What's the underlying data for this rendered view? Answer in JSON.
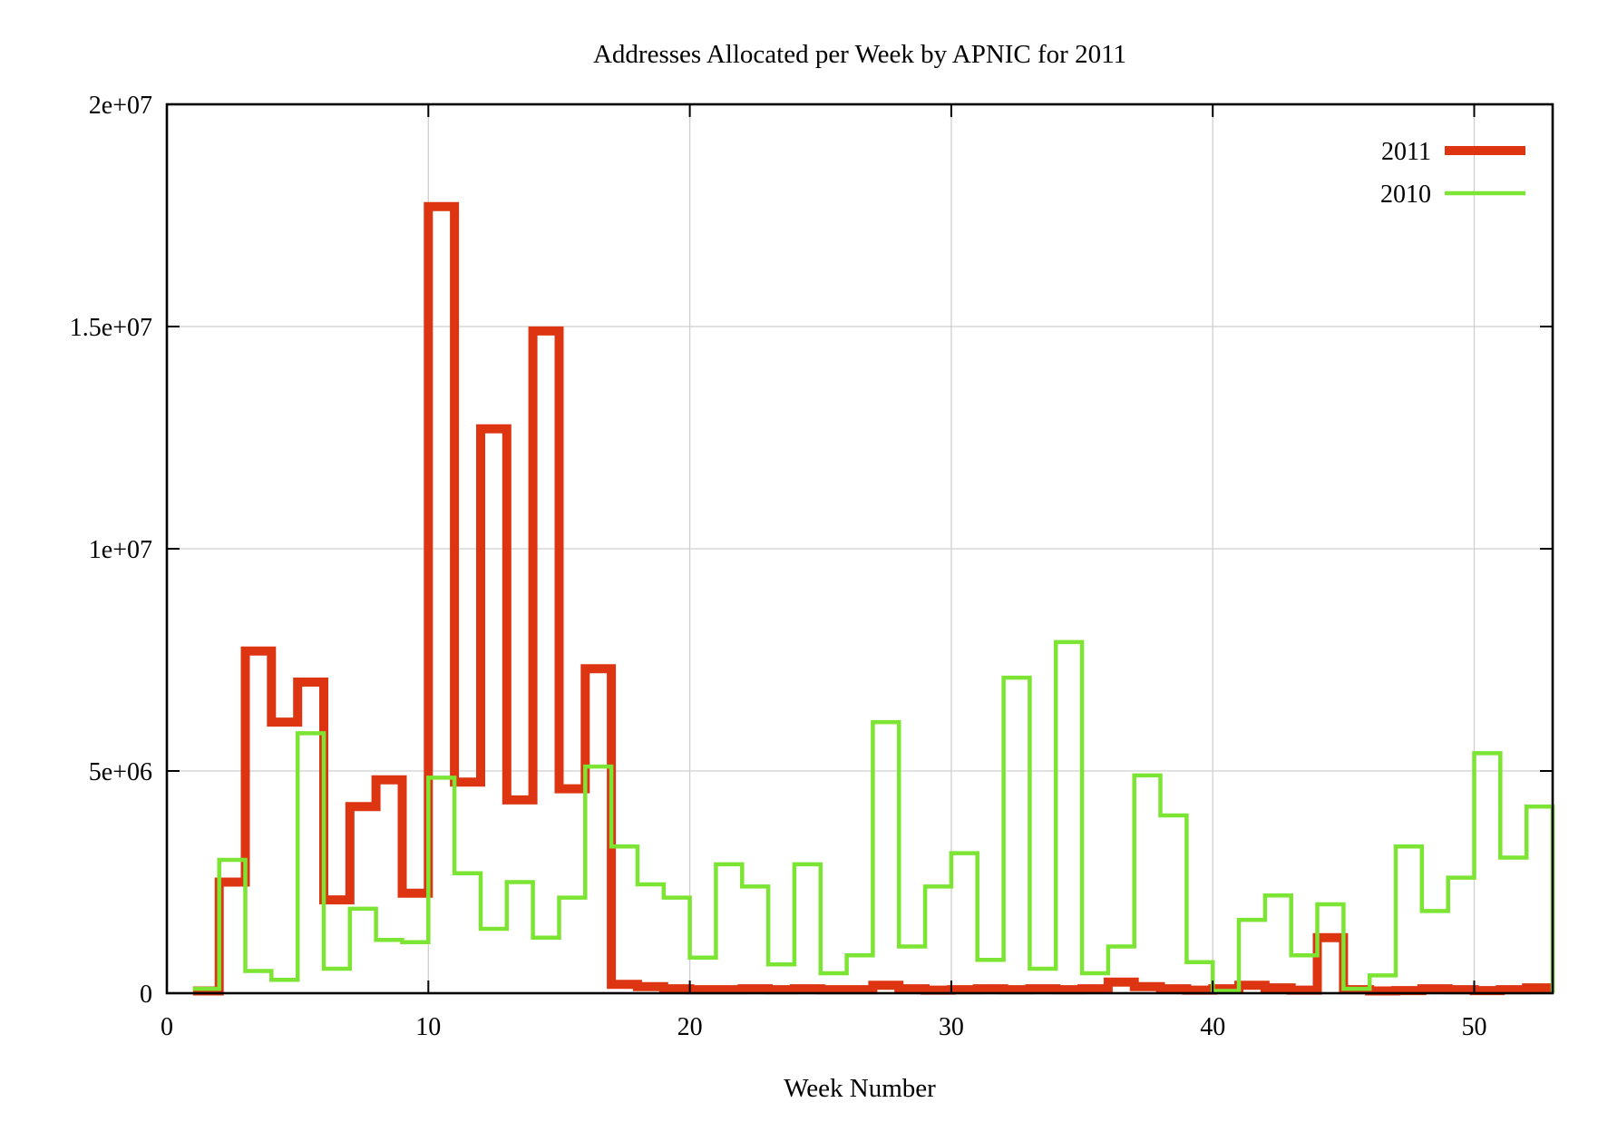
{
  "title": "Addresses Allocated per Week by APNIC for 2011",
  "xlabel": "Week Number",
  "colors": {
    "series_2011": "#dd3512",
    "series_2010": "#7ce433",
    "grid": "#cfcfcf",
    "axis": "#000000",
    "background": "#ffffff"
  },
  "legend": {
    "position": "top-right-inside",
    "entries": [
      {
        "label": "2011",
        "color": "#dd3512"
      },
      {
        "label": "2010",
        "color": "#7ce433"
      }
    ]
  },
  "axes": {
    "x_ticks": [
      {
        "label": "0",
        "value": 0
      },
      {
        "label": "10",
        "value": 10
      },
      {
        "label": "20",
        "value": 20
      },
      {
        "label": "30",
        "value": 30
      },
      {
        "label": "40",
        "value": 40
      },
      {
        "label": "50",
        "value": 50
      }
    ],
    "y_ticks": [
      {
        "label": "0",
        "value": 0
      },
      {
        "label": "5e+06",
        "value": 5000000
      },
      {
        "label": "1e+07",
        "value": 10000000
      },
      {
        "label": "1.5e+07",
        "value": 15000000
      },
      {
        "label": "2e+07",
        "value": 20000000
      }
    ]
  },
  "chart_data": {
    "type": "line",
    "step_style": "steps-post",
    "title": "Addresses Allocated per Week by APNIC for 2011",
    "xlabel": "Week Number",
    "ylabel": "",
    "x_range": [
      0,
      53
    ],
    "y_range": [
      0,
      20000000
    ],
    "grid": true,
    "legend_position": "top-right",
    "weeks": [
      1,
      2,
      3,
      4,
      5,
      6,
      7,
      8,
      9,
      10,
      11,
      12,
      13,
      14,
      15,
      16,
      17,
      18,
      19,
      20,
      21,
      22,
      23,
      24,
      25,
      26,
      27,
      28,
      29,
      30,
      31,
      32,
      33,
      34,
      35,
      36,
      37,
      38,
      39,
      40,
      41,
      42,
      43,
      44,
      45,
      46,
      47,
      48,
      49,
      50,
      51,
      52
    ],
    "series": [
      {
        "name": "2011",
        "color": "#dd3512",
        "stroke_width": 10,
        "close_to_zero_at_end": false,
        "values": [
          50000,
          2500000,
          7700000,
          6100000,
          7000000,
          2100000,
          4200000,
          4800000,
          2250000,
          17700000,
          4750000,
          12700000,
          4350000,
          14900000,
          4600000,
          7300000,
          200000,
          150000,
          100000,
          80000,
          80000,
          100000,
          80000,
          100000,
          80000,
          80000,
          180000,
          100000,
          70000,
          80000,
          100000,
          80000,
          100000,
          80000,
          100000,
          250000,
          150000,
          100000,
          70000,
          100000,
          180000,
          120000,
          70000,
          1250000,
          80000,
          50000,
          60000,
          100000,
          80000,
          60000,
          80000,
          120000
        ]
      },
      {
        "name": "2010",
        "color": "#7ce433",
        "stroke_width": 4.5,
        "close_to_zero_at_end": true,
        "values": [
          100000,
          3000000,
          500000,
          300000,
          5850000,
          550000,
          1900000,
          1200000,
          1150000,
          4850000,
          2700000,
          1450000,
          2500000,
          1250000,
          2150000,
          5100000,
          3300000,
          2450000,
          2150000,
          800000,
          2900000,
          2400000,
          650000,
          2900000,
          450000,
          850000,
          6100000,
          1050000,
          2400000,
          3150000,
          750000,
          7100000,
          550000,
          7900000,
          450000,
          1050000,
          4900000,
          4000000,
          700000,
          50000,
          1650000,
          2200000,
          850000,
          2000000,
          100000,
          400000,
          3300000,
          1850000,
          2600000,
          5400000,
          3050000,
          4200000
        ]
      }
    ]
  }
}
